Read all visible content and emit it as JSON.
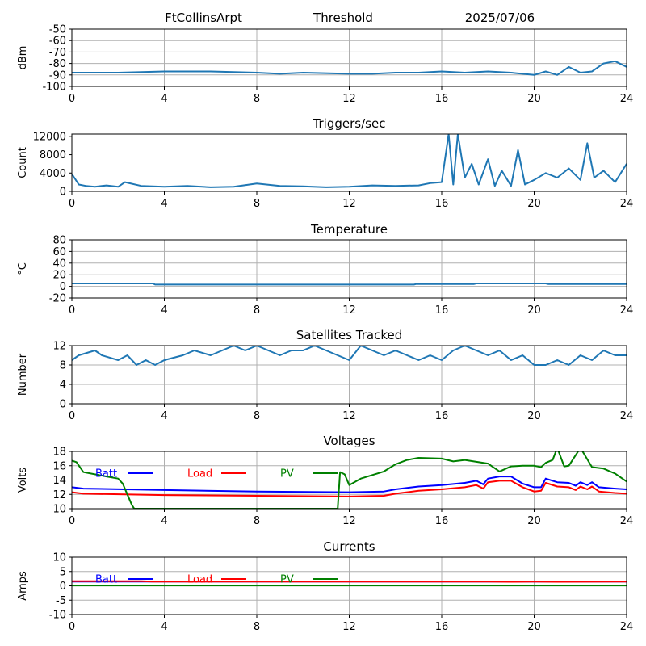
{
  "header": {
    "station": "FtCollinsArpt",
    "mode": "Threshold",
    "date": "2025/07/06"
  },
  "colors": {
    "series": "#1f77b4",
    "batt": "#0000ff",
    "load": "#ff0000",
    "pv": "#008000",
    "grid": "#b0b0b0"
  },
  "chart_data": [
    {
      "type": "line",
      "title": "",
      "ylabel": "dBm",
      "xlim": [
        0,
        24
      ],
      "ylim": [
        -100,
        -50
      ],
      "xticks": [
        0,
        4,
        8,
        12,
        16,
        20,
        24
      ],
      "yticks": [
        -100,
        -90,
        -80,
        -70,
        -60,
        -50
      ],
      "grid": true,
      "series": [
        {
          "color": "#1f77b4",
          "x": [
            0,
            2,
            4,
            6,
            8,
            9,
            10,
            12,
            13,
            14,
            15,
            16,
            17,
            18,
            19,
            20,
            20.5,
            21,
            21.5,
            22,
            22.5,
            23,
            23.5,
            24
          ],
          "y": [
            -88,
            -88,
            -87,
            -87,
            -88,
            -89,
            -88,
            -89,
            -89,
            -88,
            -88,
            -87,
            -88,
            -87,
            -88,
            -90,
            -87,
            -90,
            -83,
            -88,
            -87,
            -80,
            -78,
            -83
          ]
        }
      ]
    },
    {
      "type": "line",
      "title": "Triggers/sec",
      "ylabel": "Count",
      "xlim": [
        0,
        24
      ],
      "ylim": [
        0,
        12500
      ],
      "xticks": [
        0,
        4,
        8,
        12,
        16,
        20,
        24
      ],
      "yticks": [
        0,
        4000,
        8000,
        12000
      ],
      "grid": false,
      "series": [
        {
          "color": "#1f77b4",
          "x": [
            0,
            0.3,
            0.6,
            1,
            1.5,
            2,
            2.3,
            3,
            4,
            5,
            6,
            7,
            8,
            9,
            10,
            11,
            12,
            13,
            14,
            15,
            15.5,
            16,
            16.3,
            16.5,
            16.7,
            17,
            17.3,
            17.6,
            18,
            18.3,
            18.6,
            19,
            19.3,
            19.6,
            20,
            20.5,
            21,
            21.5,
            22,
            22.3,
            22.6,
            23,
            23.5,
            24
          ],
          "y": [
            3800,
            1500,
            1200,
            1000,
            1300,
            1000,
            2000,
            1200,
            1000,
            1200,
            900,
            1000,
            1700,
            1200,
            1100,
            900,
            1000,
            1300,
            1200,
            1300,
            1800,
            2000,
            12500,
            1500,
            12500,
            3000,
            6000,
            1500,
            7000,
            1200,
            4500,
            1200,
            9000,
            1500,
            2500,
            4000,
            3000,
            5000,
            2500,
            10500,
            3000,
            4500,
            2000,
            6000
          ]
        }
      ]
    },
    {
      "type": "line",
      "title": "Temperature",
      "ylabel": "°C",
      "xlim": [
        0,
        24
      ],
      "ylim": [
        -20,
        80
      ],
      "xticks": [
        0,
        4,
        8,
        12,
        16,
        20,
        24
      ],
      "yticks": [
        -20,
        0,
        20,
        40,
        60,
        80
      ],
      "grid": true,
      "series": [
        {
          "color": "#1f77b4",
          "x": [
            0,
            3.5,
            3.6,
            14.8,
            14.9,
            17.4,
            17.5,
            20.5,
            20.6,
            23.2,
            23.3,
            24
          ],
          "y": [
            5,
            5,
            3,
            3,
            4,
            4,
            5,
            5,
            4,
            4,
            4,
            4
          ]
        }
      ]
    },
    {
      "type": "line",
      "title": "Satellites Tracked",
      "ylabel": "Number",
      "xlim": [
        0,
        24
      ],
      "ylim": [
        0,
        12
      ],
      "xticks": [
        0,
        4,
        8,
        12,
        16,
        20,
        24
      ],
      "yticks": [
        0,
        4,
        8,
        12
      ],
      "grid": true,
      "series": [
        {
          "color": "#1f77b4",
          "x": [
            0,
            0.3,
            1,
            1.3,
            2,
            2.4,
            2.8,
            3.2,
            3.6,
            4,
            4.8,
            5.3,
            6,
            6.5,
            7,
            7.5,
            8,
            8.5,
            9,
            9.5,
            10,
            10.5,
            11,
            11.5,
            12,
            12.5,
            13,
            13.5,
            14,
            14.5,
            15,
            15.5,
            16,
            16.5,
            17,
            17.5,
            18,
            18.5,
            19,
            19.5,
            20,
            20.5,
            21,
            21.5,
            22,
            22.5,
            23,
            23.5,
            24
          ],
          "y": [
            9,
            10,
            11,
            10,
            9,
            10,
            8,
            9,
            8,
            9,
            10,
            11,
            10,
            11,
            12,
            11,
            12,
            11,
            10,
            11,
            11,
            12,
            11,
            10,
            9,
            12,
            11,
            10,
            11,
            10,
            9,
            10,
            9,
            11,
            12,
            11,
            10,
            11,
            9,
            10,
            8,
            8,
            9,
            8,
            10,
            9,
            11,
            10,
            10
          ]
        }
      ]
    },
    {
      "type": "line",
      "title": "Voltages",
      "ylabel": "Volts",
      "xlim": [
        0,
        24
      ],
      "ylim": [
        10,
        18
      ],
      "xticks": [
        0,
        4,
        8,
        12,
        16,
        20,
        24
      ],
      "yticks": [
        10,
        12,
        14,
        16,
        18
      ],
      "grid": true,
      "legend": [
        "Batt",
        "Load",
        "PV"
      ],
      "series": [
        {
          "name": "Batt",
          "color": "#0000ff",
          "x": [
            0,
            0.5,
            4,
            8,
            12,
            13.5,
            14,
            15,
            16,
            17,
            17.5,
            17.8,
            18,
            18.5,
            19,
            19.5,
            20,
            20.3,
            20.5,
            21,
            21.5,
            21.8,
            22,
            22.3,
            22.5,
            22.8,
            23.5,
            24
          ],
          "y": [
            13.0,
            12.8,
            12.6,
            12.4,
            12.3,
            12.4,
            12.7,
            13.1,
            13.3,
            13.6,
            13.9,
            13.4,
            14.2,
            14.5,
            14.5,
            13.5,
            13.0,
            13.0,
            14.2,
            13.7,
            13.6,
            13.2,
            13.7,
            13.3,
            13.7,
            13.0,
            12.8,
            12.7
          ]
        },
        {
          "name": "Load",
          "color": "#ff0000",
          "x": [
            0,
            0.5,
            4,
            8,
            12,
            13.5,
            14,
            15,
            16,
            17,
            17.5,
            17.8,
            18,
            18.5,
            19,
            19.5,
            20,
            20.3,
            20.5,
            21,
            21.5,
            21.8,
            22,
            22.3,
            22.5,
            22.8,
            23.5,
            24
          ],
          "y": [
            12.3,
            12.1,
            11.9,
            11.8,
            11.7,
            11.8,
            12.1,
            12.5,
            12.7,
            13.0,
            13.3,
            12.8,
            13.7,
            13.9,
            13.9,
            13.0,
            12.4,
            12.5,
            13.6,
            13.1,
            13.0,
            12.6,
            13.1,
            12.7,
            13.1,
            12.4,
            12.2,
            12.1
          ]
        },
        {
          "name": "PV",
          "color": "#008000",
          "x": [
            0,
            0.2,
            0.5,
            1,
            1.5,
            2,
            2.2,
            2.4,
            2.6,
            2.7,
            2.72,
            11.5,
            11.6,
            11.8,
            12,
            12.5,
            13,
            13.5,
            14,
            14.5,
            15,
            16,
            16.5,
            17,
            18,
            18.5,
            19,
            19.5,
            20,
            20.3,
            20.5,
            20.8,
            21,
            21.3,
            21.5,
            22,
            22.5,
            23,
            23.5,
            24
          ],
          "y": [
            16.7,
            16.5,
            15.1,
            14.8,
            14.5,
            14.2,
            13.5,
            12.0,
            10.5,
            10.0,
            10.0,
            10.0,
            15.1,
            14.8,
            13.3,
            14.2,
            14.7,
            15.2,
            16.2,
            16.8,
            17.1,
            17.0,
            16.6,
            16.8,
            16.3,
            15.2,
            15.9,
            16.0,
            16.0,
            15.8,
            16.4,
            16.8,
            18.5,
            15.9,
            16.0,
            18.5,
            15.8,
            15.6,
            14.9,
            13.8
          ]
        }
      ]
    },
    {
      "type": "line",
      "title": "Currents",
      "ylabel": "Amps",
      "xlim": [
        0,
        24
      ],
      "ylim": [
        -10,
        10
      ],
      "xticks": [
        0,
        4,
        8,
        12,
        16,
        20,
        24
      ],
      "yticks": [
        -10,
        -5,
        0,
        5,
        10
      ],
      "grid": true,
      "legend": [
        "Batt",
        "Load",
        "PV"
      ],
      "series": [
        {
          "name": "Batt",
          "color": "#0000ff",
          "x": [
            0,
            24
          ],
          "y": [
            1.5,
            1.5
          ]
        },
        {
          "name": "Load",
          "color": "#ff0000",
          "x": [
            0,
            3,
            3.5,
            12,
            18,
            19,
            20,
            21,
            24
          ],
          "y": [
            1.6,
            1.6,
            1.5,
            1.5,
            1.5,
            1.4,
            1.5,
            1.4,
            1.5
          ]
        },
        {
          "name": "PV",
          "color": "#008000",
          "x": [
            0,
            24
          ],
          "y": [
            0.1,
            0.1
          ]
        }
      ]
    }
  ]
}
